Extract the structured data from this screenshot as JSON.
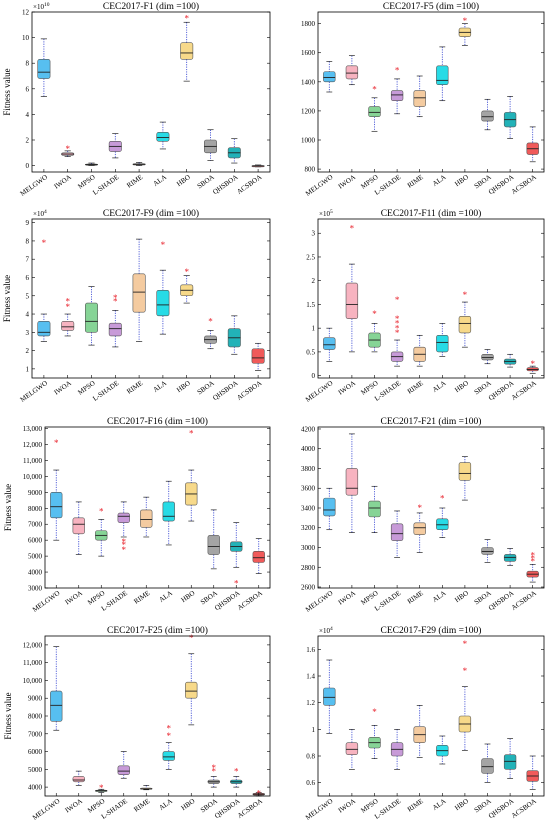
{
  "figure": {
    "ylabel": "Fitness value",
    "categories": [
      "MELGWO",
      "IWOA",
      "MPSO",
      "L-SHADE",
      "RIME",
      "ALA",
      "HBO",
      "SBOA",
      "QHSBOA",
      "ACSBOA"
    ],
    "colors": [
      "#57bff0",
      "#f7b3c0",
      "#86d496",
      "#c79ad8",
      "#f4cba0",
      "#27dbe6",
      "#f7d98a",
      "#a4a4a4",
      "#22b2b8",
      "#f05a5a"
    ]
  },
  "chart_data": [
    {
      "type": "box",
      "title": "CEC2017-F1 (dim =100)",
      "ylabel": "Fitness value",
      "exponent": "×10",
      "exponent_power": "10",
      "ylim": [
        -0.5,
        12
      ],
      "yticks": [
        0,
        2,
        4,
        6,
        8,
        10,
        12
      ],
      "categories": [
        "MELGWO",
        "IWOA",
        "MPSO",
        "L-SHADE",
        "RIME",
        "ALA",
        "HBO",
        "SBOA",
        "QHSBOA",
        "ACSBOA"
      ],
      "series": [
        {
          "min": 5.4,
          "q1": 6.8,
          "median": 7.3,
          "q3": 8.3,
          "max": 9.9,
          "outliers": []
        },
        {
          "min": 0.7,
          "q1": 0.8,
          "median": 0.9,
          "q3": 1.0,
          "max": 1.15,
          "outliers": [
            1.3
          ]
        },
        {
          "min": 0.0,
          "q1": 0.05,
          "median": 0.08,
          "q3": 0.12,
          "max": 0.2,
          "outliers": []
        },
        {
          "min": 0.6,
          "q1": 1.1,
          "median": 1.5,
          "q3": 1.9,
          "max": 2.5,
          "outliers": []
        },
        {
          "min": 0.0,
          "q1": 0.05,
          "median": 0.1,
          "q3": 0.15,
          "max": 0.25,
          "outliers": []
        },
        {
          "min": 1.3,
          "q1": 1.9,
          "median": 2.2,
          "q3": 2.6,
          "max": 3.4,
          "outliers": []
        },
        {
          "min": 6.6,
          "q1": 8.3,
          "median": 8.8,
          "q3": 9.6,
          "max": 11.2,
          "outliers": [
            11.5
          ]
        },
        {
          "min": 0.4,
          "q1": 1.0,
          "median": 1.5,
          "q3": 2.0,
          "max": 2.8,
          "outliers": []
        },
        {
          "min": 0.2,
          "q1": 0.6,
          "median": 1.0,
          "q3": 1.4,
          "max": 2.1,
          "outliers": []
        },
        {
          "min": -0.1,
          "q1": -0.05,
          "median": -0.02,
          "q3": 0.0,
          "max": 0.05,
          "outliers": []
        }
      ]
    },
    {
      "type": "box",
      "title": "CEC2017-F5 (dim =100)",
      "ylabel": "",
      "exponent": "",
      "exponent_power": "",
      "ylim": [
        780,
        1880
      ],
      "yticks": [
        800,
        1000,
        1200,
        1400,
        1600,
        1800
      ],
      "categories": [
        "MELGWO",
        "IWOA",
        "MPSO",
        "L-SHADE",
        "RIME",
        "ALA",
        "HBO",
        "SBOA",
        "QHSBOA",
        "ACSBOA"
      ],
      "series": [
        {
          "min": 1330,
          "q1": 1400,
          "median": 1430,
          "q3": 1470,
          "max": 1540,
          "outliers": []
        },
        {
          "min": 1380,
          "q1": 1420,
          "median": 1460,
          "q3": 1510,
          "max": 1580,
          "outliers": []
        },
        {
          "min": 1060,
          "q1": 1160,
          "median": 1190,
          "q3": 1230,
          "max": 1290,
          "outliers": [
            1350
          ]
        },
        {
          "min": 1180,
          "q1": 1270,
          "median": 1310,
          "q3": 1340,
          "max": 1420,
          "outliers": [
            1480
          ]
        },
        {
          "min": 1160,
          "q1": 1230,
          "median": 1290,
          "q3": 1340,
          "max": 1440,
          "outliers": []
        },
        {
          "min": 1270,
          "q1": 1380,
          "median": 1410,
          "q3": 1510,
          "max": 1640,
          "outliers": []
        },
        {
          "min": 1650,
          "q1": 1710,
          "median": 1740,
          "q3": 1770,
          "max": 1800,
          "outliers": [
            1820
          ]
        },
        {
          "min": 1070,
          "q1": 1130,
          "median": 1160,
          "q3": 1200,
          "max": 1280,
          "outliers": []
        },
        {
          "min": 1010,
          "q1": 1090,
          "median": 1140,
          "q3": 1190,
          "max": 1300,
          "outliers": []
        },
        {
          "min": 850,
          "q1": 900,
          "median": 940,
          "q3": 980,
          "max": 1090,
          "outliers": []
        }
      ]
    },
    {
      "type": "box",
      "title": "CEC2017-F9 (dim =100)",
      "ylabel": "Fitness value",
      "exponent": "×10",
      "exponent_power": "4",
      "ylim": [
        0.5,
        9.2
      ],
      "yticks": [
        1,
        2,
        3,
        4,
        5,
        6,
        7,
        8,
        9
      ],
      "categories": [
        "MELGWO",
        "IWOA",
        "MPSO",
        "L-SHADE",
        "RIME",
        "ALA",
        "HBO",
        "SBOA",
        "QHSBOA",
        "ACSBOA"
      ],
      "series": [
        {
          "min": 2.5,
          "q1": 2.8,
          "median": 3.0,
          "q3": 3.6,
          "max": 4.0,
          "outliers": [
            7.9
          ]
        },
        {
          "min": 2.8,
          "q1": 3.1,
          "median": 3.3,
          "q3": 3.6,
          "max": 4.0,
          "outliers": [
            4.4,
            4.7
          ]
        },
        {
          "min": 2.3,
          "q1": 3.0,
          "median": 3.6,
          "q3": 4.6,
          "max": 5.5,
          "outliers": []
        },
        {
          "min": 2.2,
          "q1": 2.8,
          "median": 3.2,
          "q3": 3.5,
          "max": 4.2,
          "outliers": [
            4.7,
            4.9
          ]
        },
        {
          "min": 2.5,
          "q1": 4.1,
          "median": 5.2,
          "q3": 6.2,
          "max": 8.1,
          "outliers": []
        },
        {
          "min": 2.9,
          "q1": 3.9,
          "median": 4.5,
          "q3": 5.3,
          "max": 6.4,
          "outliers": [
            7.8
          ]
        },
        {
          "min": 4.6,
          "q1": 5.0,
          "median": 5.3,
          "q3": 5.6,
          "max": 6.1,
          "outliers": [
            6.3
          ]
        },
        {
          "min": 2.1,
          "q1": 2.4,
          "median": 2.6,
          "q3": 2.8,
          "max": 3.1,
          "outliers": [
            3.6
          ]
        },
        {
          "min": 1.8,
          "q1": 2.2,
          "median": 2.7,
          "q3": 3.2,
          "max": 3.9,
          "outliers": []
        },
        {
          "min": 0.9,
          "q1": 1.3,
          "median": 1.6,
          "q3": 2.1,
          "max": 2.4,
          "outliers": []
        }
      ]
    },
    {
      "type": "box",
      "title": "CEC2017-F11 (dim =100)",
      "ylabel": "",
      "exponent": "×10",
      "exponent_power": "5",
      "ylim": [
        -0.05,
        3.3
      ],
      "yticks": [
        0,
        0.5,
        1,
        1.5,
        2,
        2.5,
        3
      ],
      "ytick_labels": [
        "0",
        "0.5",
        "1",
        "1.5",
        "2",
        "2.5",
        "3"
      ],
      "categories": [
        "MELGWO",
        "IWOA",
        "MPSO",
        "L-SHADE",
        "RIME",
        "ALA",
        "HBO",
        "SBOA",
        "QHSBOA",
        "ACSBOA"
      ],
      "series": [
        {
          "min": 0.3,
          "q1": 0.55,
          "median": 0.65,
          "q3": 0.8,
          "max": 1.0,
          "outliers": []
        },
        {
          "min": 0.5,
          "q1": 1.2,
          "median": 1.5,
          "q3": 1.95,
          "max": 2.35,
          "outliers": [
            3.1
          ]
        },
        {
          "min": 0.5,
          "q1": 0.6,
          "median": 0.75,
          "q3": 0.9,
          "max": 1.1,
          "outliers": [
            1.3
          ]
        },
        {
          "min": 0.2,
          "q1": 0.3,
          "median": 0.4,
          "q3": 0.5,
          "max": 0.75,
          "outliers": [
            0.9,
            1.0,
            1.1,
            1.2,
            1.6
          ]
        },
        {
          "min": 0.2,
          "q1": 0.3,
          "median": 0.45,
          "q3": 0.6,
          "max": 0.85,
          "outliers": []
        },
        {
          "min": 0.4,
          "q1": 0.5,
          "median": 0.7,
          "q3": 0.85,
          "max": 1.1,
          "outliers": []
        },
        {
          "min": 0.6,
          "q1": 0.9,
          "median": 1.1,
          "q3": 1.25,
          "max": 1.55,
          "outliers": [
            1.7
          ]
        },
        {
          "min": 0.25,
          "q1": 0.33,
          "median": 0.38,
          "q3": 0.45,
          "max": 0.55,
          "outliers": []
        },
        {
          "min": 0.18,
          "q1": 0.24,
          "median": 0.3,
          "q3": 0.35,
          "max": 0.45,
          "outliers": []
        },
        {
          "min": 0.05,
          "q1": 0.1,
          "median": 0.13,
          "q3": 0.17,
          "max": 0.2,
          "outliers": [
            0.25
          ]
        }
      ]
    },
    {
      "type": "box",
      "title": "CEC2017-F16 (dim =100)",
      "ylabel": "Fitness value",
      "exponent": "",
      "exponent_power": "",
      "ylim": [
        3000,
        13100
      ],
      "yticks": [
        3000,
        4000,
        5000,
        6000,
        7000,
        8000,
        9000,
        10000,
        11000,
        12000,
        13000
      ],
      "ytick_labels": [
        "3000",
        "4000",
        "5000",
        "6000",
        "7000",
        "8000",
        "9000",
        "10,000",
        "11,000",
        "12,000",
        "13,000"
      ],
      "categories": [
        "MELGWO",
        "IWOA",
        "MPSO",
        "L-SHADE",
        "RIME",
        "ALA",
        "HBO",
        "SBOA",
        "QHSBOA",
        "ACSBOA"
      ],
      "series": [
        {
          "min": 6000,
          "q1": 7400,
          "median": 8100,
          "q3": 9000,
          "max": 10400,
          "outliers": [
            12100
          ]
        },
        {
          "min": 5100,
          "q1": 6400,
          "median": 7000,
          "q3": 7400,
          "max": 8400,
          "outliers": []
        },
        {
          "min": 5000,
          "q1": 6000,
          "median": 6300,
          "q3": 6600,
          "max": 7300,
          "outliers": [
            7800
          ]
        },
        {
          "min": 6200,
          "q1": 7100,
          "median": 7500,
          "q3": 7700,
          "max": 8400,
          "outliers": [
            5400,
            5700,
            5900
          ]
        },
        {
          "min": 6200,
          "q1": 6800,
          "median": 7300,
          "q3": 7900,
          "max": 8700,
          "outliers": []
        },
        {
          "min": 5700,
          "q1": 7200,
          "median": 7500,
          "q3": 8400,
          "max": 9700,
          "outliers": []
        },
        {
          "min": 7200,
          "q1": 8200,
          "median": 8900,
          "q3": 9600,
          "max": 10400,
          "outliers": [
            12700
          ]
        },
        {
          "min": 4200,
          "q1": 5100,
          "median": 5600,
          "q3": 6300,
          "max": 7900,
          "outliers": []
        },
        {
          "min": 4300,
          "q1": 5300,
          "median": 5600,
          "q3": 5900,
          "max": 7100,
          "outliers": [
            3300
          ]
        },
        {
          "min": 3900,
          "q1": 4600,
          "median": 4900,
          "q3": 5300,
          "max": 6100,
          "outliers": []
        }
      ]
    },
    {
      "type": "box",
      "title": "CEC2017-F21 (dim =100)",
      "ylabel": "",
      "exponent": "",
      "exponent_power": "",
      "ylim": [
        2590,
        4220
      ],
      "yticks": [
        2600,
        2800,
        3000,
        3200,
        3400,
        3600,
        3800,
        4000,
        4200
      ],
      "categories": [
        "MELGWO",
        "IWOA",
        "MPSO",
        "L-SHADE",
        "RIME",
        "ALA",
        "HBO",
        "SBOA",
        "QHSBOA",
        "ACSBOA"
      ],
      "series": [
        {
          "min": 3180,
          "q1": 3320,
          "median": 3380,
          "q3": 3500,
          "max": 3600,
          "outliers": []
        },
        {
          "min": 3150,
          "q1": 3530,
          "median": 3600,
          "q3": 3800,
          "max": 4150,
          "outliers": []
        },
        {
          "min": 3150,
          "q1": 3310,
          "median": 3400,
          "q3": 3470,
          "max": 3620,
          "outliers": []
        },
        {
          "min": 2900,
          "q1": 3070,
          "median": 3140,
          "q3": 3240,
          "max": 3370,
          "outliers": []
        },
        {
          "min": 2950,
          "q1": 3130,
          "median": 3200,
          "q3": 3250,
          "max": 3350,
          "outliers": [
            3400
          ]
        },
        {
          "min": 3100,
          "q1": 3180,
          "median": 3230,
          "q3": 3290,
          "max": 3400,
          "outliers": [
            3500
          ]
        },
        {
          "min": 3480,
          "q1": 3680,
          "median": 3750,
          "q3": 3860,
          "max": 3920,
          "outliers": []
        },
        {
          "min": 2850,
          "q1": 2930,
          "median": 2960,
          "q3": 3000,
          "max": 3080,
          "outliers": []
        },
        {
          "min": 2820,
          "q1": 2860,
          "median": 2900,
          "q3": 2930,
          "max": 2990,
          "outliers": []
        },
        {
          "min": 2650,
          "q1": 2700,
          "median": 2730,
          "q3": 2760,
          "max": 2830,
          "outliers": [
            2860,
            2890,
            2920
          ]
        }
      ]
    },
    {
      "type": "box",
      "title": "CEC2017-F25 (dim =100)",
      "ylabel": "Fitness value",
      "exponent": "",
      "exponent_power": "",
      "ylim": [
        3500,
        12500
      ],
      "yticks": [
        4000,
        5000,
        6000,
        7000,
        8000,
        9000,
        10000,
        11000,
        12000
      ],
      "ytick_labels": [
        "4000",
        "5000",
        "6000",
        "7000",
        "8000",
        "9000",
        "10,000",
        "11,000",
        "12,000"
      ],
      "categories": [
        "MELGWO",
        "IWOA",
        "MPSO",
        "L-SHADE",
        "RIME",
        "ALA",
        "HBO",
        "SBOA",
        "QHSBOA",
        "ACSBOA"
      ],
      "series": [
        {
          "min": 7200,
          "q1": 7700,
          "median": 8600,
          "q3": 9400,
          "max": 11900,
          "outliers": []
        },
        {
          "min": 4100,
          "q1": 4300,
          "median": 4400,
          "q3": 4600,
          "max": 4900,
          "outliers": []
        },
        {
          "min": 3700,
          "q1": 3750,
          "median": 3800,
          "q3": 3830,
          "max": 3880,
          "outliers": [
            3950
          ]
        },
        {
          "min": 4500,
          "q1": 4700,
          "median": 4900,
          "q3": 5200,
          "max": 6000,
          "outliers": []
        },
        {
          "min": 3850,
          "q1": 3880,
          "median": 3900,
          "q3": 3950,
          "max": 4100,
          "outliers": []
        },
        {
          "min": 5000,
          "q1": 5500,
          "median": 5700,
          "q3": 6000,
          "max": 6500,
          "outliers": [
            6900,
            7300
          ]
        },
        {
          "min": 7500,
          "q1": 9000,
          "median": 9400,
          "q3": 9900,
          "max": 11500,
          "outliers": [
            12400
          ]
        },
        {
          "min": 4000,
          "q1": 4200,
          "median": 4300,
          "q3": 4400,
          "max": 4600,
          "outliers": [
            4900,
            5100
          ]
        },
        {
          "min": 4000,
          "q1": 4200,
          "median": 4300,
          "q3": 4400,
          "max": 4600,
          "outliers": [
            4900
          ]
        },
        {
          "min": 3500,
          "q1": 3550,
          "median": 3600,
          "q3": 3650,
          "max": 3700,
          "outliers": [
            3650
          ]
        }
      ]
    },
    {
      "type": "box",
      "title": "CEC2017-F29 (dim =100)",
      "ylabel": "",
      "exponent": "×10",
      "exponent_power": "4",
      "ylim": [
        0.5,
        1.7
      ],
      "yticks": [
        0.6,
        0.8,
        1.0,
        1.2,
        1.4,
        1.6
      ],
      "ytick_labels": [
        "0.6",
        "0.8",
        "1",
        "1.2",
        "1.4",
        "1.6"
      ],
      "categories": [
        "MELGWO",
        "IWOA",
        "MPSO",
        "L-SHADE",
        "RIME",
        "ALA",
        "HBO",
        "SBOA",
        "QHSBOA",
        "ACSBOA"
      ],
      "series": [
        {
          "min": 0.97,
          "q1": 1.18,
          "median": 1.24,
          "q3": 1.31,
          "max": 1.52,
          "outliers": []
        },
        {
          "min": 0.7,
          "q1": 0.81,
          "median": 0.85,
          "q3": 0.9,
          "max": 1.0,
          "outliers": []
        },
        {
          "min": 0.78,
          "q1": 0.86,
          "median": 0.9,
          "q3": 0.94,
          "max": 1.03,
          "outliers": [
            1.13
          ]
        },
        {
          "min": 0.7,
          "q1": 0.8,
          "median": 0.85,
          "q3": 0.9,
          "max": 1.0,
          "outliers": []
        },
        {
          "min": 0.79,
          "q1": 0.9,
          "median": 0.96,
          "q3": 1.02,
          "max": 1.18,
          "outliers": []
        },
        {
          "min": 0.74,
          "q1": 0.8,
          "median": 0.84,
          "q3": 0.88,
          "max": 0.95,
          "outliers": []
        },
        {
          "min": 0.84,
          "q1": 0.98,
          "median": 1.04,
          "q3": 1.1,
          "max": 1.32,
          "outliers": [
            1.44,
            1.64
          ]
        },
        {
          "min": 0.6,
          "q1": 0.67,
          "median": 0.72,
          "q3": 0.78,
          "max": 0.89,
          "outliers": []
        },
        {
          "min": 0.63,
          "q1": 0.7,
          "median": 0.76,
          "q3": 0.81,
          "max": 0.93,
          "outliers": []
        },
        {
          "min": 0.55,
          "q1": 0.61,
          "median": 0.65,
          "q3": 0.69,
          "max": 0.8,
          "outliers": []
        }
      ]
    }
  ]
}
